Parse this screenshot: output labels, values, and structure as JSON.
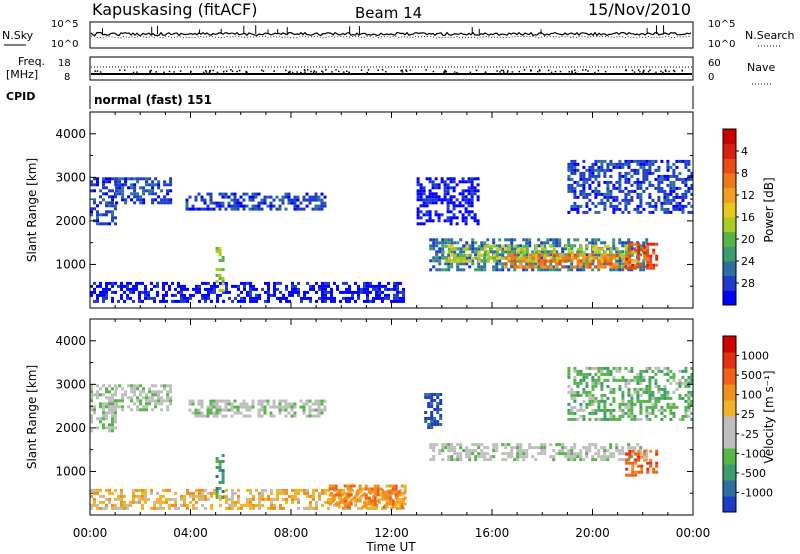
{
  "header": {
    "station": "Kapuskasing (fitACF)",
    "beam": "Beam 14",
    "date": "15/Nov/2010"
  },
  "top_panels": {
    "nsky": {
      "left_label": "N.Sky",
      "right_label": "N.Search",
      "left_ticks": [
        "10^5",
        "10^0"
      ],
      "right_ticks": [
        "10^5",
        "10^0"
      ]
    },
    "freq": {
      "left_label_1": "Freq.",
      "left_label_2": "[MHz]",
      "right_label": "Nave",
      "left_ticks": [
        "18",
        "8"
      ],
      "right_ticks": [
        "60",
        "0"
      ]
    },
    "cpid": {
      "label": "CPID",
      "text": "normal (fast) 151"
    }
  },
  "x_axis": {
    "label": "Time UT",
    "ticks": [
      "00:00",
      "04:00",
      "08:00",
      "12:00",
      "16:00",
      "20:00",
      "00:00"
    ]
  },
  "chart_data": [
    {
      "type": "heatmap",
      "title": "",
      "xlabel": "Time UT",
      "ylabel": "Slant Range [km]",
      "x_range_hours": [
        0,
        24
      ],
      "ylim": [
        0,
        4500
      ],
      "y_ticks": [
        1000,
        2000,
        3000,
        4000
      ],
      "colorbar": {
        "label": "Power [dB]",
        "ticks": [
          "4",
          "8",
          "12",
          "16",
          "20",
          "24",
          "28"
        ],
        "colors": [
          "#0000ff",
          "#1e3cc8",
          "#2a6fa0",
          "#3c9c70",
          "#56b448",
          "#aacc22",
          "#e8c81c",
          "#f0a020",
          "#f07818",
          "#e84c14",
          "#d82010",
          "#c80000"
        ]
      },
      "regions": [
        {
          "t0": 0.0,
          "t1": 1.0,
          "r0": 1900,
          "r1": 3000,
          "level": 1
        },
        {
          "t0": 1.0,
          "t1": 3.2,
          "r0": 2400,
          "r1": 3000,
          "level": 1
        },
        {
          "t0": 3.8,
          "t1": 9.3,
          "r0": 2250,
          "r1": 2650,
          "level": 1
        },
        {
          "t0": 0.0,
          "t1": 12.5,
          "r0": 150,
          "r1": 600,
          "level": 0
        },
        {
          "t0": 5.0,
          "t1": 5.3,
          "r0": 400,
          "r1": 1400,
          "level": 5
        },
        {
          "t0": 13.5,
          "t1": 22.2,
          "r0": 850,
          "r1": 1600,
          "level": 2
        },
        {
          "t0": 14.0,
          "t1": 21.8,
          "r0": 1100,
          "r1": 1450,
          "level": 5
        },
        {
          "t0": 16.5,
          "t1": 21.5,
          "r0": 950,
          "r1": 1250,
          "level": 8
        },
        {
          "t0": 21.3,
          "t1": 22.5,
          "r0": 900,
          "r1": 1500,
          "level": 9
        },
        {
          "t0": 19.0,
          "t1": 24.0,
          "r0": 2200,
          "r1": 3400,
          "level": 1
        },
        {
          "t0": 13.0,
          "t1": 15.5,
          "r0": 1900,
          "r1": 3000,
          "level": 0
        }
      ]
    },
    {
      "type": "heatmap",
      "title": "",
      "xlabel": "Time UT",
      "ylabel": "Slant Range [km]",
      "x_range_hours": [
        0,
        24
      ],
      "ylim": [
        0,
        4500
      ],
      "y_ticks": [
        1000,
        2000,
        3000,
        4000
      ],
      "colorbar": {
        "label": "Velocity [m s⁻¹]",
        "ticks": [
          "1000",
          "500",
          "100",
          "25",
          "-25",
          "-100",
          "-500",
          "-1000"
        ],
        "colors": [
          "#1e3cc8",
          "#2a6fa0",
          "#3c9c70",
          "#56b448",
          "#bebebe",
          "#bebebe",
          "#f0b428",
          "#f09020",
          "#f06018",
          "#e03010",
          "#d00000"
        ]
      },
      "regions": [
        {
          "t0": 0.0,
          "t1": 1.0,
          "r0": 1900,
          "r1": 3000,
          "level": 4
        },
        {
          "t0": 1.0,
          "t1": 3.2,
          "r0": 2400,
          "r1": 3000,
          "level": 4
        },
        {
          "t0": 3.8,
          "t1": 9.3,
          "r0": 2250,
          "r1": 2650,
          "level": 4
        },
        {
          "t0": 0.0,
          "t1": 12.5,
          "r0": 150,
          "r1": 600,
          "level": 6
        },
        {
          "t0": 9.5,
          "t1": 12.5,
          "r0": 150,
          "r1": 700,
          "level": 7
        },
        {
          "t0": 5.0,
          "t1": 5.3,
          "r0": 400,
          "r1": 1400,
          "level": 2
        },
        {
          "t0": 13.5,
          "t1": 22.2,
          "r0": 1300,
          "r1": 1650,
          "level": 4
        },
        {
          "t0": 21.3,
          "t1": 22.5,
          "r0": 900,
          "r1": 1500,
          "level": 8
        },
        {
          "t0": 19.0,
          "t1": 24.0,
          "r0": 2200,
          "r1": 3400,
          "level": 3
        },
        {
          "t0": 13.3,
          "t1": 13.9,
          "r0": 2000,
          "r1": 2800,
          "level": 0
        }
      ]
    }
  ]
}
